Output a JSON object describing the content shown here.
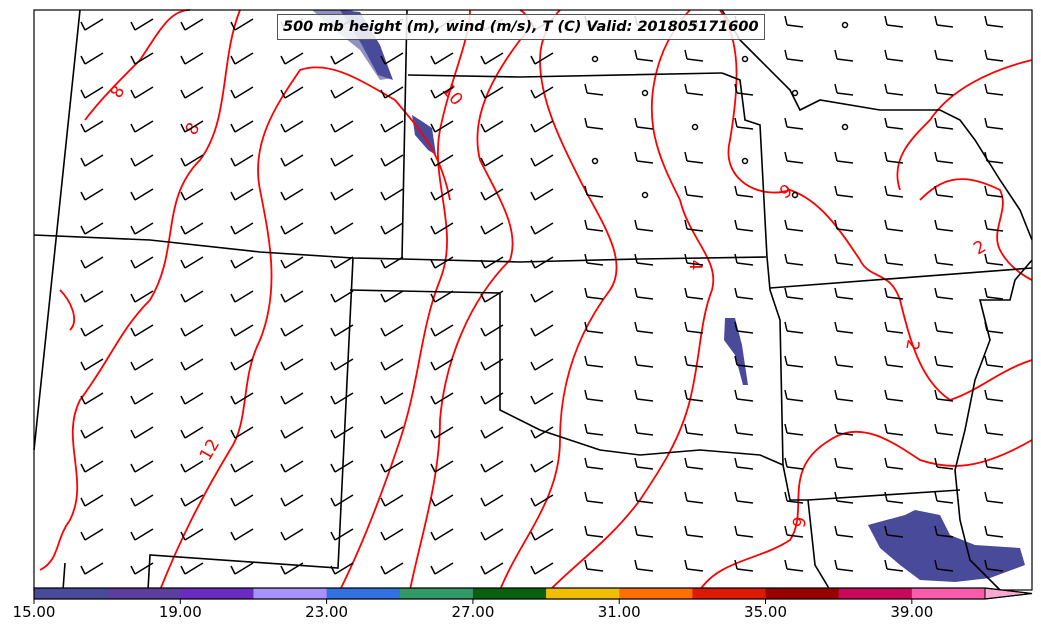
{
  "title": "500 mb height (m), wind (m/s), T (C) Valid: 201805171600",
  "contour_labels": [
    {
      "text": "8"
    },
    {
      "text": "8"
    },
    {
      "text": "10"
    },
    {
      "text": "12"
    },
    {
      "text": "4"
    },
    {
      "text": "2"
    },
    {
      "text": "2"
    },
    {
      "text": "6"
    },
    {
      "text": "6"
    }
  ],
  "colorbar": {
    "min": 15,
    "max": 41,
    "step": 2,
    "tick_labels": [
      "15.00",
      "19.00",
      "23.00",
      "27.00",
      "31.00",
      "35.00",
      "39.00"
    ],
    "colors": [
      "#4a4a9a",
      "#5a3f9e",
      "#6a2cc0",
      "#a991fb",
      "#3370e0",
      "#339966",
      "#086010",
      "#f0c000",
      "#ff7000",
      "#dd1a00",
      "#990000",
      "#c8085a",
      "#f95cab"
    ],
    "extend_color": "#f7a8d0"
  },
  "colors": {
    "contour": "#ff0000",
    "border": "#000000",
    "shade": "#4a4a9a"
  }
}
